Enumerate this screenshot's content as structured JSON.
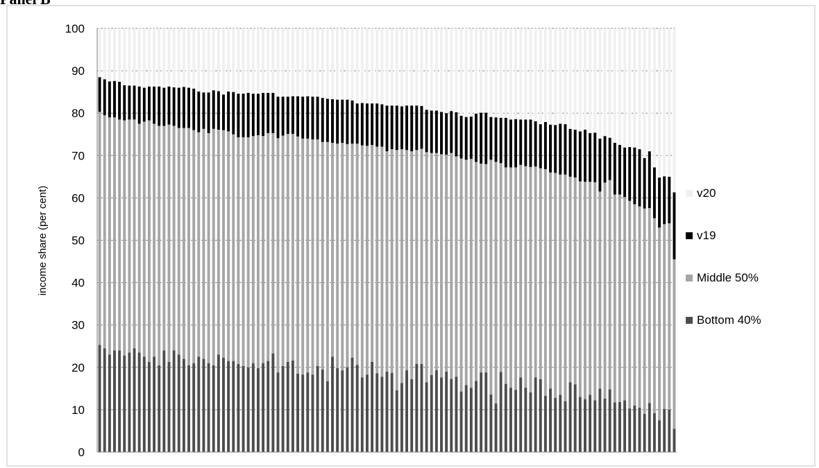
{
  "panel_title": "Panel B",
  "chart_data": {
    "type": "bar",
    "stacked": true,
    "bar_count": 136,
    "ylabel": "income share (per cent)",
    "xlabel": "",
    "ylim": [
      0,
      100
    ],
    "yticks": [
      "0",
      "10",
      "20",
      "30",
      "40",
      "50",
      "60",
      "70",
      "80",
      "90",
      "100"
    ],
    "grid": "dashed horizontal",
    "legend_position": "right",
    "colors": {
      "v20": "#f0f0f0",
      "v19": "#000000",
      "middle": "#a6a6a6",
      "bottom": "#4d4d4d",
      "grid": "#808080",
      "axis": "#808080"
    },
    "series": [
      {
        "name": "Bottom 40%",
        "key": "bottom",
        "values": [
          25.3,
          24.5,
          23.0,
          24.0,
          24.0,
          22.8,
          23.5,
          24.5,
          23.5,
          22.5,
          21.3,
          22.5,
          20.5,
          24.0,
          21.3,
          24.0,
          23.0,
          22.0,
          20.5,
          21.0,
          22.5,
          22.0,
          21.0,
          20.5,
          23.0,
          22.3,
          21.5,
          21.5,
          20.8,
          20.3,
          20.0,
          21.0,
          19.8,
          21.0,
          21.5,
          23.3,
          18.8,
          20.3,
          21.3,
          21.6,
          18.5,
          18.3,
          18.8,
          18.3,
          20.3,
          19.5,
          16.7,
          22.5,
          19.8,
          19.3,
          20.0,
          22.3,
          20.6,
          17.6,
          18.3,
          21.3,
          18.6,
          17.8,
          19.0,
          18.7,
          14.6,
          16.3,
          19.3,
          17.2,
          20.8,
          20.8,
          16.5,
          18.2,
          19.3,
          17.6,
          19.0,
          17.3,
          17.8,
          14.3,
          15.8,
          15.2,
          16.8,
          18.8,
          18.8,
          13.6,
          11.5,
          18.9,
          16.1,
          15.2,
          14.7,
          17.6,
          15.2,
          14.1,
          17.6,
          17.2,
          13.3,
          15.0,
          12.8,
          13.5,
          12.0,
          16.5,
          16.0,
          13.0,
          12.5,
          13.5,
          12.2,
          15.0,
          12.6,
          14.8,
          11.7,
          11.8,
          12.2,
          10.3,
          11.0,
          10.5,
          9.0,
          11.6,
          9.2,
          7.5,
          10.2,
          10.0,
          5.5
        ]
      },
      {
        "name": "Middle 50%",
        "key": "middle",
        "values": [
          55.0,
          55.0,
          56.0,
          55.0,
          54.5,
          55.5,
          55.0,
          54.0,
          54.0,
          55.5,
          57.0,
          55.0,
          56.5,
          53.0,
          56.0,
          53.0,
          53.5,
          54.5,
          56.0,
          55.0,
          53.0,
          54.3,
          54.3,
          55.8,
          53.1,
          53.7,
          54.2,
          53.5,
          53.5,
          54.0,
          54.3,
          53.6,
          55.0,
          53.6,
          53.8,
          52.0,
          55.3,
          54.4,
          53.8,
          53.5,
          56.0,
          55.7,
          55.2,
          55.5,
          53.5,
          53.7,
          56.5,
          50.5,
          53.0,
          53.7,
          52.7,
          50.5,
          52.2,
          54.8,
          54.0,
          51.2,
          53.5,
          54.3,
          52.0,
          52.8,
          56.7,
          55.2,
          52.0,
          53.8,
          50.5,
          50.8,
          54.3,
          52.4,
          51.3,
          52.7,
          51.2,
          53.3,
          52.0,
          55.0,
          53.2,
          54.0,
          51.7,
          49.3,
          49.2,
          55.4,
          57.0,
          49.3,
          51.1,
          52.0,
          52.5,
          50.2,
          52.3,
          53.2,
          49.8,
          49.8,
          53.5,
          51.0,
          53.1,
          52.0,
          53.5,
          48.5,
          48.8,
          50.9,
          51.3,
          50.3,
          51.5,
          46.5,
          51.0,
          49.4,
          49.1,
          49.0,
          48.0,
          49.0,
          47.5,
          47.5,
          48.5,
          46.0,
          46.0,
          45.5,
          43.6,
          44.0,
          40.0
        ]
      },
      {
        "name": "v19",
        "key": "v19",
        "values": [
          8.2,
          8.5,
          8.5,
          8.6,
          8.9,
          8.3,
          8.0,
          8.0,
          8.8,
          8.0,
          8.0,
          8.8,
          9.3,
          9.0,
          9.0,
          9.1,
          9.5,
          9.7,
          9.5,
          9.8,
          9.6,
          8.6,
          9.6,
          9.1,
          9.1,
          8.4,
          9.4,
          10.0,
          10.3,
          10.3,
          10.5,
          10.0,
          9.8,
          10.2,
          9.5,
          9.5,
          9.8,
          9.2,
          8.8,
          8.9,
          9.5,
          9.9,
          10.0,
          10.1,
          10.1,
          10.4,
          10.2,
          10.3,
          10.4,
          10.2,
          10.5,
          10.2,
          9.5,
          10.0,
          10.0,
          9.8,
          10.2,
          10.0,
          10.8,
          10.3,
          10.5,
          10.1,
          10.5,
          10.8,
          10.5,
          10.1,
          10.0,
          10.0,
          10.0,
          10.0,
          9.8,
          9.9,
          10.4,
          10.1,
          10.1,
          10.0,
          11.4,
          12.0,
          12.1,
          10.1,
          10.5,
          10.7,
          11.7,
          11.3,
          11.4,
          10.7,
          11.0,
          11.2,
          10.7,
          10.4,
          11.1,
          11.3,
          11.3,
          12.0,
          11.9,
          11.3,
          11.3,
          11.8,
          12.3,
          11.5,
          11.7,
          12.5,
          11.0,
          10.0,
          12.2,
          11.7,
          11.7,
          12.7,
          13.4,
          13.5,
          11.9,
          13.4,
          12.0,
          11.8,
          11.3,
          11.0,
          15.8
        ]
      },
      {
        "name": "v20",
        "key": "v20",
        "values": [
          11.5,
          12.0,
          12.5,
          12.4,
          12.6,
          13.4,
          13.5,
          13.5,
          13.7,
          14.0,
          13.7,
          13.7,
          13.7,
          14.0,
          13.7,
          13.9,
          14.0,
          13.8,
          14.0,
          14.2,
          14.9,
          15.1,
          15.1,
          14.6,
          14.8,
          15.6,
          14.9,
          15.0,
          15.4,
          15.4,
          15.2,
          15.4,
          15.4,
          15.2,
          15.2,
          15.2,
          16.1,
          16.1,
          16.1,
          16.0,
          16.0,
          16.1,
          16.0,
          16.1,
          16.1,
          16.4,
          16.6,
          16.7,
          16.8,
          16.8,
          16.8,
          17.0,
          17.7,
          17.6,
          17.7,
          17.7,
          17.7,
          17.9,
          18.2,
          18.2,
          18.2,
          18.4,
          18.2,
          18.2,
          18.2,
          18.3,
          19.2,
          19.4,
          19.4,
          19.7,
          20.0,
          19.5,
          19.8,
          20.6,
          20.9,
          20.8,
          20.1,
          19.9,
          19.9,
          20.9,
          21.0,
          21.1,
          21.1,
          21.5,
          21.4,
          21.5,
          21.5,
          21.5,
          21.9,
          22.6,
          22.1,
          22.7,
          22.8,
          22.5,
          22.6,
          23.7,
          23.9,
          24.3,
          23.9,
          24.7,
          24.6,
          26.0,
          25.4,
          25.8,
          27.0,
          27.5,
          28.1,
          28.0,
          28.1,
          28.5,
          30.6,
          29.4,
          32.8,
          35.2,
          34.9,
          35.0,
          38.7
        ]
      }
    ],
    "legend": [
      "v20",
      "v19",
      "Middle 50%",
      "Bottom 40%"
    ]
  }
}
